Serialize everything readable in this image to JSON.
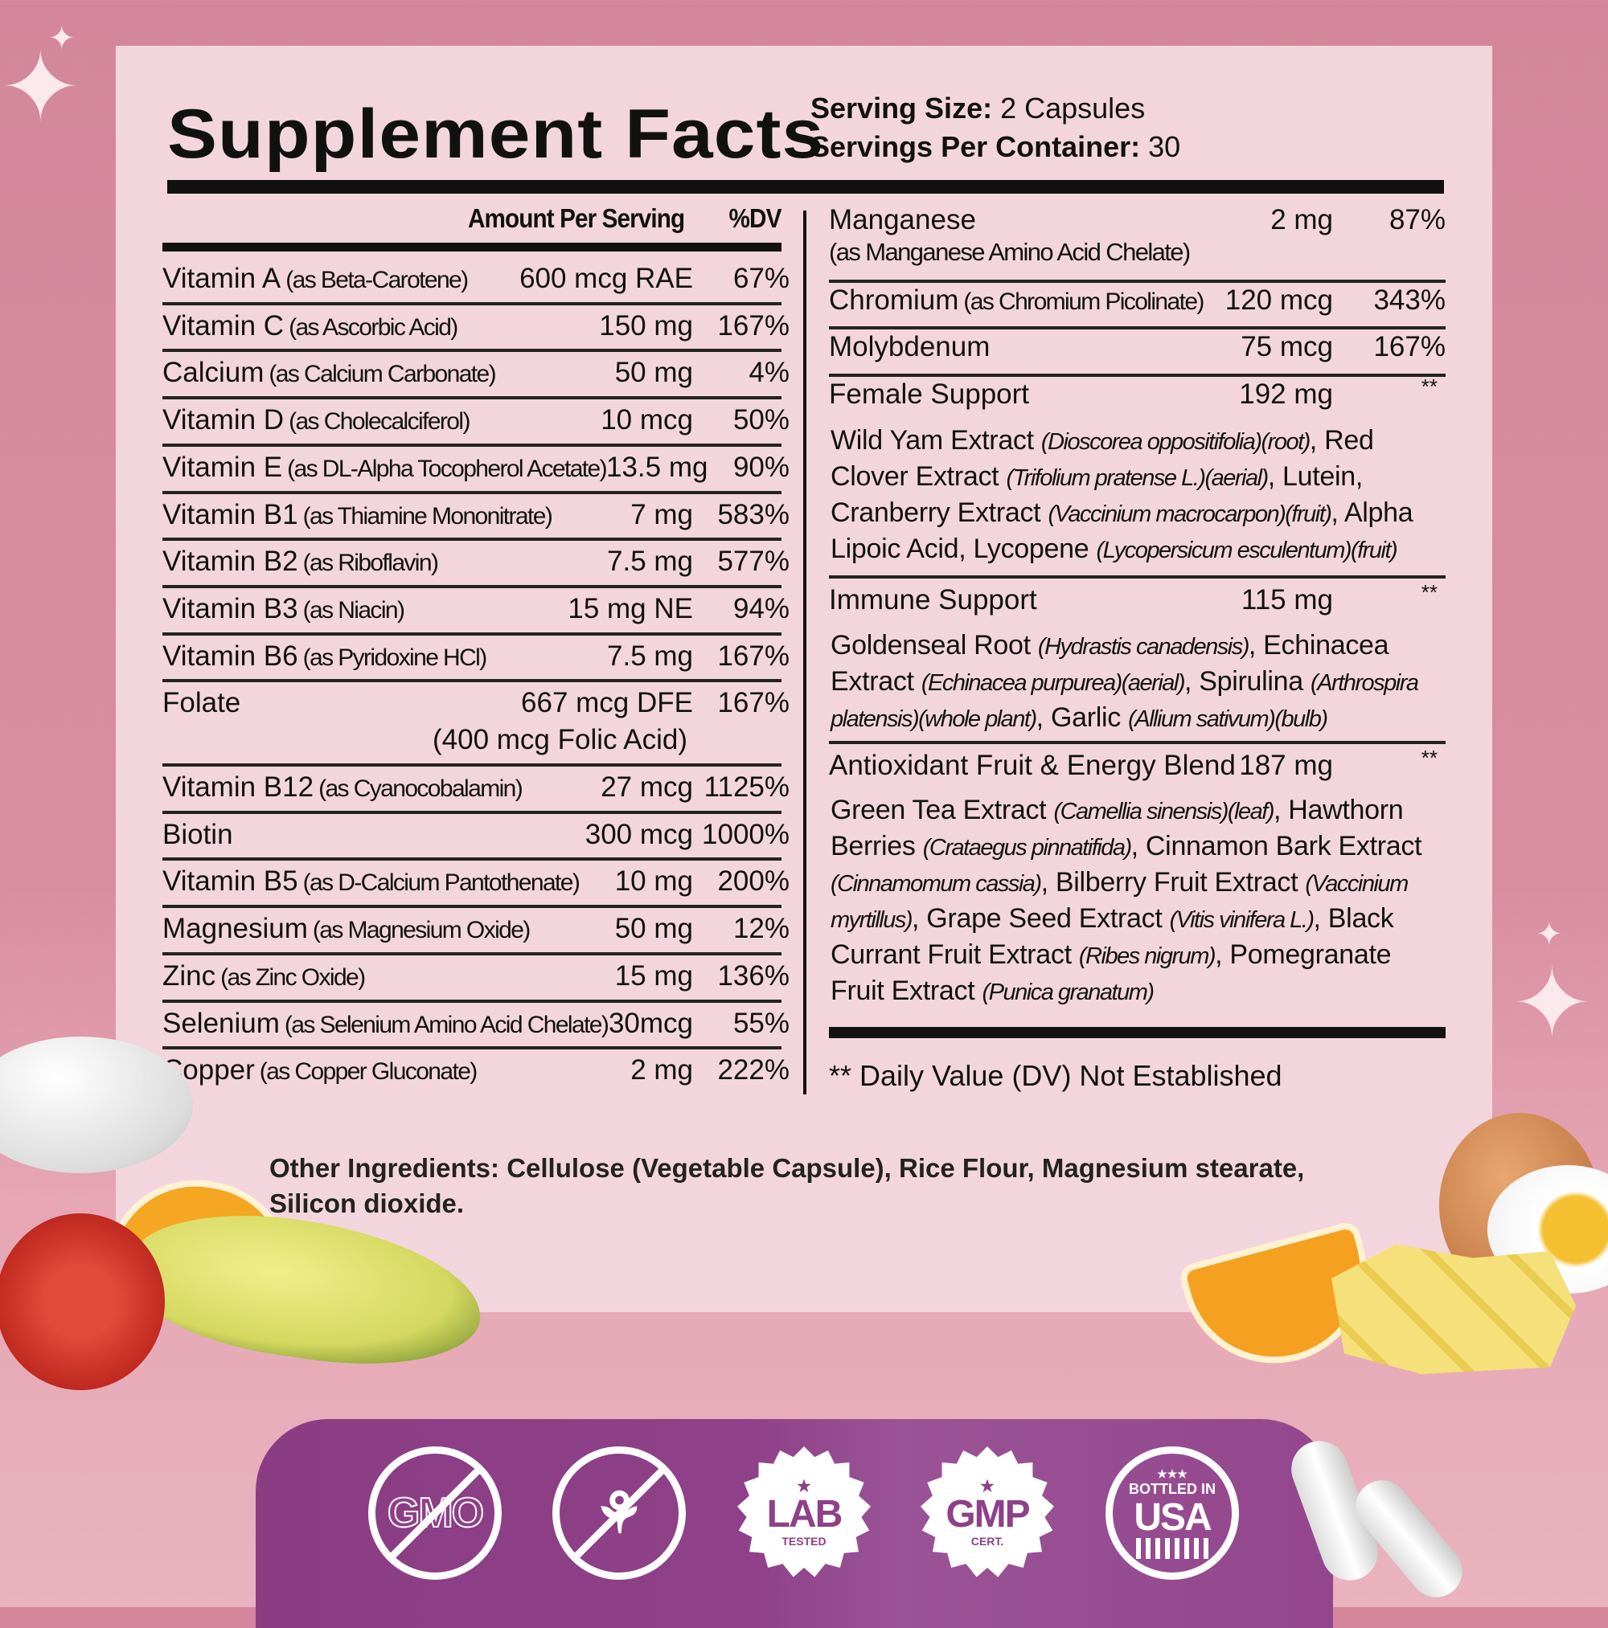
{
  "header": {
    "title": "Supplement Facts",
    "serving_size_label": "Serving Size:",
    "serving_size": "2 Capsules",
    "servings_label": "Servings Per Container:",
    "servings": "30"
  },
  "left": {
    "col_amount": "Amount Per Serving",
    "col_dv": "%DV",
    "rows": [
      {
        "name": "Vitamin A",
        "source": "(as Beta-Carotene)",
        "amount": "600 mcg RAE",
        "dv": "67%"
      },
      {
        "name": "Vitamin C",
        "source": "(as Ascorbic Acid)",
        "amount": "150 mg",
        "dv": "167%"
      },
      {
        "name": "Calcium",
        "source": "(as Calcium Carbonate)",
        "amount": "50 mg",
        "dv": "4%"
      },
      {
        "name": "Vitamin D",
        "source": "(as Cholecalciferol)",
        "amount": "10 mcg",
        "dv": "50%"
      },
      {
        "name": "Vitamin E",
        "source": "(as DL-Alpha Tocopherol Acetate)",
        "amount": "13.5 mg",
        "dv": "90%"
      },
      {
        "name": "Vitamin B1",
        "source": "(as Thiamine Mononitrate)",
        "amount": "7 mg",
        "dv": "583%"
      },
      {
        "name": "Vitamin B2",
        "source": "(as Riboflavin)",
        "amount": "7.5 mg",
        "dv": "577%"
      },
      {
        "name": "Vitamin B3",
        "source": "(as Niacin)",
        "amount": "15 mg NE",
        "dv": "94%"
      },
      {
        "name": "Vitamin B6",
        "source": "(as Pyridoxine HCl)",
        "amount": "7.5 mg",
        "dv": "167%"
      },
      {
        "name": "Folate",
        "source": "",
        "amount": "667 mcg DFE",
        "amount2": "(400 mcg Folic Acid)",
        "dv": "167%"
      },
      {
        "name": "Vitamin B12",
        "source": "(as Cyanocobalamin)",
        "amount": "27 mcg",
        "dv": "1125%"
      },
      {
        "name": "Biotin",
        "source": "",
        "amount": "300 mcg",
        "dv": "1000%"
      },
      {
        "name": "Vitamin B5",
        "source": "(as D-Calcium Pantothenate)",
        "amount": "10 mg",
        "dv": "200%"
      },
      {
        "name": "Magnesium",
        "source": "(as Magnesium Oxide)",
        "amount": "50 mg",
        "dv": "12%"
      },
      {
        "name": "Zinc",
        "source": "(as Zinc Oxide)",
        "amount": "15 mg",
        "dv": "136%"
      },
      {
        "name": "Selenium",
        "source": "(as Selenium Amino Acid Chelate)",
        "amount": "30mcg",
        "dv": "55%"
      },
      {
        "name": "Copper",
        "source": "(as Copper Gluconate)",
        "amount": "2 mg",
        "dv": "222%"
      }
    ]
  },
  "right": {
    "manganese": {
      "name": "Manganese",
      "source": "(as Manganese Amino Acid Chelate)",
      "amount": "2 mg",
      "dv": "87%"
    },
    "chromium": {
      "name": "Chromium",
      "source": "(as Chromium Picolinate)",
      "amount": "120 mcg",
      "dv": "343%"
    },
    "molybdenum": {
      "name": "Molybdenum",
      "amount": "75 mcg",
      "dv": "167%"
    },
    "female": {
      "name": "Female Support",
      "amount": "192 mg",
      "dv": "**",
      "parts": [
        [
          "Wild Yam Extract ",
          ""
        ],
        [
          "",
          "(Dioscorea oppositifolia)(root)"
        ],
        [
          ", Red Clover Extract ",
          ""
        ],
        [
          "",
          "(Trifolium pratense L.)(aerial)"
        ],
        [
          ", Lutein, Cranberry Extract ",
          ""
        ],
        [
          "",
          "(Vaccinium macrocarpon)(fruit)"
        ],
        [
          ", Alpha Lipoic Acid, Lycopene ",
          ""
        ],
        [
          "",
          "(Lycopersicum esculentum)(fruit)"
        ]
      ]
    },
    "immune": {
      "name": "Immune Support",
      "amount": "115 mg",
      "dv": "**",
      "parts": [
        [
          "Goldenseal Root ",
          ""
        ],
        [
          "",
          "(Hydrastis canadensis)"
        ],
        [
          ", Echinacea Extract ",
          ""
        ],
        [
          "",
          "(Echinacea purpurea)(aerial)"
        ],
        [
          ", Spirulina ",
          ""
        ],
        [
          "",
          "(Arthrospira platensis)(whole plant)"
        ],
        [
          ", Garlic ",
          ""
        ],
        [
          "",
          "(Allium sativum)(bulb)"
        ]
      ]
    },
    "antiox": {
      "name": "Antioxidant Fruit & Energy Blend",
      "amount": "187 mg",
      "dv": "**",
      "parts": [
        [
          "Green Tea Extract ",
          ""
        ],
        [
          "",
          "(Camellia sinensis)(leaf)"
        ],
        [
          ", Hawthorn Berries ",
          ""
        ],
        [
          "",
          "(Crataegus pinnatifida)"
        ],
        [
          ", Cinnamon Bark Extract ",
          ""
        ],
        [
          "",
          "(Cinnamomum cassia)"
        ],
        [
          ", Bilberry Fruit Extract ",
          ""
        ],
        [
          "",
          "(Vaccinium myrtillus)"
        ],
        [
          ", Grape Seed Extract ",
          ""
        ],
        [
          "",
          "(Vitis vinifera L.)"
        ],
        [
          ", Black Currant Fruit Extract ",
          ""
        ],
        [
          "",
          "(Ribes nigrum)"
        ],
        [
          ", Pomegranate Fruit Extract ",
          ""
        ],
        [
          "",
          "(Punica granatum)"
        ]
      ]
    },
    "footnote": "** Daily Value (DV) Not Established"
  },
  "other": {
    "label": "Other Ingredients:",
    "text": " Cellulose (Vegetable Capsule), Rice Flour, Magnesium stearate, Silicon dioxide."
  },
  "badges": [
    {
      "icon": "non-gmo-icon",
      "text": "GMO"
    },
    {
      "icon": "gluten-free-icon",
      "text": ""
    },
    {
      "icon": "lab-tested-icon",
      "text": "LAB",
      "sub": "TESTED"
    },
    {
      "icon": "gmp-certified-icon",
      "text": "GMP",
      "sub": "CERT."
    },
    {
      "icon": "bottled-in-usa-icon",
      "top": "BOTTLED IN",
      "text": "USA"
    }
  ],
  "colors": {
    "background": "#d4879c",
    "panel": "#f3d6dd",
    "band": "#8e4088"
  }
}
